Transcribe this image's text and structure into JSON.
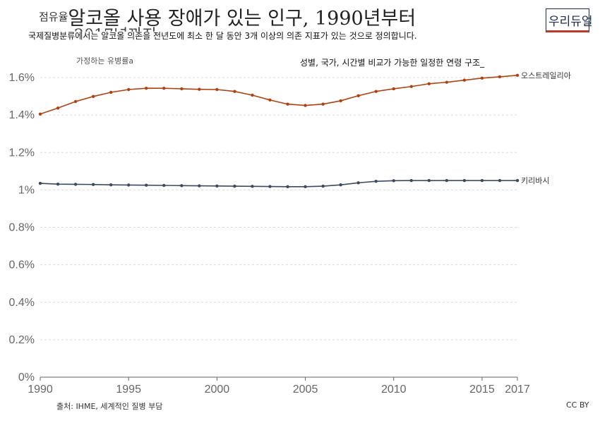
{
  "header": {
    "title_prefix": "점유율",
    "title_main": "알코올 사용 장애가 있는 인구, 1990년부터",
    "title_year": "2017년까지",
    "subtitle": "국제질병분류에서는 알코올 의존을 전년도에 최소 한 달 동안 3개 이상의 의존 지표가 있는 것으로 정의합니다."
  },
  "logo": {
    "text": "우리듀얼"
  },
  "annotations": {
    "left": "가정하는 유병률a",
    "right": "성별, 국가, 시간별 비교가 가능한 일정한 연령 구조_"
  },
  "footer": {
    "source": "출처: IHME, 세계적인 질병 부담",
    "license": "CC BY"
  },
  "chart_data": {
    "type": "line",
    "x": [
      1990,
      1991,
      1992,
      1993,
      1994,
      1995,
      1996,
      1997,
      1998,
      1999,
      2000,
      2001,
      2002,
      2003,
      2004,
      2005,
      2006,
      2007,
      2008,
      2009,
      2010,
      2011,
      2012,
      2013,
      2014,
      2015,
      2016,
      2017
    ],
    "series": [
      {
        "name": "오스트레일리아",
        "color": "#b5400f",
        "values": [
          1.405,
          1.437,
          1.472,
          1.499,
          1.521,
          1.536,
          1.543,
          1.543,
          1.54,
          1.537,
          1.536,
          1.526,
          1.506,
          1.48,
          1.458,
          1.451,
          1.458,
          1.476,
          1.503,
          1.526,
          1.54,
          1.552,
          1.567,
          1.575,
          1.586,
          1.597,
          1.604,
          1.612
        ]
      },
      {
        "name": "키리바시",
        "color": "#3b4a63",
        "values": [
          1.035,
          1.031,
          1.03,
          1.029,
          1.027,
          1.026,
          1.025,
          1.024,
          1.023,
          1.022,
          1.021,
          1.02,
          1.019,
          1.018,
          1.017,
          1.017,
          1.02,
          1.027,
          1.038,
          1.046,
          1.049,
          1.05,
          1.05,
          1.05,
          1.05,
          1.05,
          1.05,
          1.05
        ]
      }
    ],
    "y_ticks": [
      "0%",
      "0.2%",
      "0.4%",
      "0.6%",
      "0.8%",
      "1%",
      "1.2%",
      "1.4%",
      "1.6%"
    ],
    "y_tick_values": [
      0,
      0.2,
      0.4,
      0.6,
      0.8,
      1.0,
      1.2,
      1.4,
      1.6
    ],
    "x_ticks": [
      "1990",
      "1995",
      "2000",
      "2005",
      "2010",
      "2015",
      "2017"
    ],
    "x_tick_values": [
      1990,
      1995,
      2000,
      2005,
      2010,
      2015,
      2017
    ],
    "xlim": [
      1990,
      2017
    ],
    "ylim": [
      0,
      1.65
    ],
    "grid": true,
    "legend": "line-end labels"
  }
}
